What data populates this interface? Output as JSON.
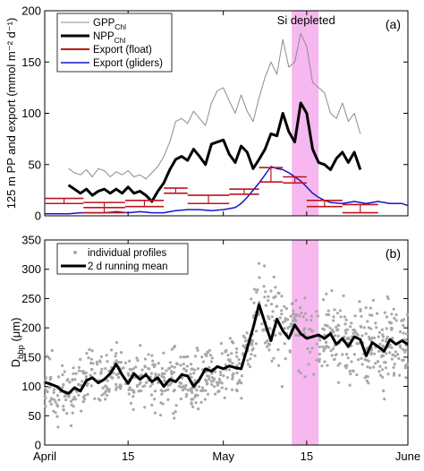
{
  "chart_data": [
    {
      "panel_label": "(a)",
      "type": "line",
      "ylabel": "125 m PP and export (mmol m⁻² d⁻¹)",
      "ylim": [
        0,
        200
      ],
      "yticks": [
        0,
        50,
        100,
        150,
        200
      ],
      "xlim_days": [
        0,
        61
      ],
      "xtick_labels": [
        "April",
        "15",
        "May",
        "15",
        "June"
      ],
      "annotation": "Si depleted",
      "shaded_region_days": [
        41.5,
        46
      ],
      "shade_color": "#f6b8ee",
      "legend_position": "top-left",
      "legend": [
        {
          "key": "gpp",
          "label": "GPP",
          "sub": "Chl",
          "color": "#8c8c8c"
        },
        {
          "key": "npp",
          "label": "NPP",
          "sub": "Chl",
          "color": "#000000"
        },
        {
          "key": "float",
          "label": "Export (float)",
          "color": "#c0141e"
        },
        {
          "key": "gliders",
          "label": "Export (gliders)",
          "color": "#1515c8"
        }
      ],
      "series": [
        {
          "key": "gpp",
          "color": "#8c8c8c",
          "x": [
            4,
            5,
            6,
            7,
            8,
            9,
            10,
            11,
            12,
            13,
            14,
            15,
            16,
            17,
            18,
            19,
            20,
            21,
            22,
            23,
            24,
            25,
            26,
            27,
            28,
            29,
            30,
            31,
            32,
            33,
            34,
            35,
            36,
            37,
            38,
            39,
            40,
            41,
            42,
            43,
            44,
            45,
            46,
            47,
            48,
            49,
            50,
            51,
            52,
            53
          ],
          "y": [
            46,
            42,
            40,
            45,
            38,
            46,
            44,
            38,
            43,
            40,
            44,
            38,
            40,
            36,
            42,
            48,
            58,
            72,
            92,
            95,
            90,
            102,
            95,
            88,
            110,
            122,
            125,
            112,
            100,
            118,
            102,
            92,
            115,
            135,
            150,
            138,
            172,
            145,
            150,
            178,
            165,
            130,
            125,
            120,
            100,
            95,
            110,
            92,
            100,
            80
          ]
        },
        {
          "key": "npp",
          "color": "#000000",
          "x": [
            4,
            5,
            6,
            7,
            8,
            9,
            10,
            11,
            12,
            13,
            14,
            15,
            16,
            17,
            18,
            19,
            20,
            21,
            22,
            23,
            24,
            25,
            26,
            27,
            28,
            29,
            30,
            31,
            32,
            33,
            34,
            35,
            36,
            37,
            38,
            39,
            40,
            41,
            42,
            43,
            44,
            45,
            46,
            47,
            48,
            49,
            50,
            51,
            52,
            53
          ],
          "y": [
            30,
            26,
            22,
            26,
            20,
            24,
            26,
            22,
            26,
            22,
            28,
            22,
            24,
            20,
            14,
            24,
            32,
            45,
            55,
            58,
            54,
            65,
            58,
            50,
            70,
            72,
            74,
            60,
            52,
            68,
            62,
            46,
            55,
            65,
            80,
            78,
            100,
            82,
            72,
            110,
            100,
            65,
            52,
            50,
            45,
            56,
            62,
            52,
            62,
            45
          ]
        },
        {
          "key": "gliders",
          "color": "#1515c8",
          "x": [
            0,
            2,
            4,
            6,
            8,
            10,
            12,
            14,
            16,
            18,
            20,
            22,
            24,
            26,
            28,
            30,
            32,
            33,
            34,
            35,
            36,
            37,
            38,
            39,
            40,
            41,
            42,
            43,
            44,
            45,
            46,
            47,
            48,
            50,
            52,
            54,
            56,
            58,
            60,
            61
          ],
          "y": [
            2,
            2,
            2,
            3,
            3,
            3,
            4,
            3,
            4,
            3,
            3,
            5,
            6,
            6,
            5,
            6,
            8,
            12,
            18,
            25,
            32,
            40,
            48,
            46,
            45,
            42,
            38,
            34,
            28,
            22,
            18,
            15,
            13,
            12,
            14,
            12,
            14,
            12,
            12,
            10
          ]
        }
      ],
      "float_export_segments": [
        {
          "x0": 0,
          "x1": 6.5,
          "y": [
            12,
            17
          ]
        },
        {
          "x0": 6.5,
          "x1": 13.5,
          "y": [
            3,
            8,
            13
          ]
        },
        {
          "x0": 13.5,
          "x1": 20,
          "y": [
            9,
            15
          ]
        },
        {
          "x0": 20,
          "x1": 24,
          "y": [
            22,
            27
          ]
        },
        {
          "x0": 24,
          "x1": 31,
          "y": [
            12,
            20
          ]
        },
        {
          "x0": 31,
          "x1": 36,
          "y": [
            21,
            26
          ]
        },
        {
          "x0": 36,
          "x1": 40,
          "y": [
            33,
            47
          ]
        },
        {
          "x0": 40,
          "x1": 44,
          "y": [
            32,
            38
          ]
        },
        {
          "x0": 44,
          "x1": 50,
          "y": [
            9,
            15
          ]
        },
        {
          "x0": 50,
          "x1": 56,
          "y": [
            3,
            11
          ]
        }
      ]
    },
    {
      "panel_label": "(b)",
      "type": "scatter",
      "ylabel": "D",
      "ylabel_sub": "bbp",
      "ylabel_unit": " (μm)",
      "ylim": [
        0,
        350
      ],
      "yticks": [
        0,
        50,
        100,
        150,
        200,
        250,
        300,
        350
      ],
      "xlim_days": [
        0,
        61
      ],
      "xtick_labels": [
        "April",
        "15",
        "May",
        "15",
        "June"
      ],
      "shaded_region_days": [
        41.5,
        46
      ],
      "shade_color": "#f6b8ee",
      "legend_position": "top-left",
      "legend": [
        {
          "key": "profiles",
          "label": "individual profiles",
          "color": "#a8a8a8"
        },
        {
          "key": "mean",
          "label": "2 d running mean",
          "color": "#000000"
        }
      ],
      "running_mean": {
        "x": [
          0,
          1,
          2,
          3,
          4,
          5,
          6,
          7,
          8,
          9,
          10,
          11,
          12,
          13,
          14,
          15,
          16,
          17,
          18,
          19,
          20,
          21,
          22,
          23,
          24,
          25,
          26,
          27,
          28,
          29,
          30,
          31,
          32,
          33,
          34,
          35,
          36,
          37,
          38,
          39,
          40,
          41,
          42,
          43,
          44,
          45,
          46,
          47,
          48,
          49,
          50,
          51,
          52,
          53,
          54,
          55,
          56,
          57,
          58,
          59,
          60,
          61
        ],
        "y": [
          107,
          104,
          100,
          92,
          88,
          98,
          92,
          110,
          115,
          106,
          112,
          122,
          138,
          120,
          105,
          122,
          112,
          120,
          108,
          115,
          100,
          112,
          108,
          120,
          118,
          100,
          112,
          130,
          126,
          134,
          130,
          135,
          132,
          130,
          165,
          200,
          240,
          208,
          178,
          215,
          195,
          182,
          205,
          190,
          182,
          185,
          188,
          182,
          190,
          172,
          182,
          168,
          185,
          180,
          152,
          175,
          168,
          160,
          180,
          172,
          178,
          172
        ]
      },
      "scatter_seed": 7
    }
  ]
}
